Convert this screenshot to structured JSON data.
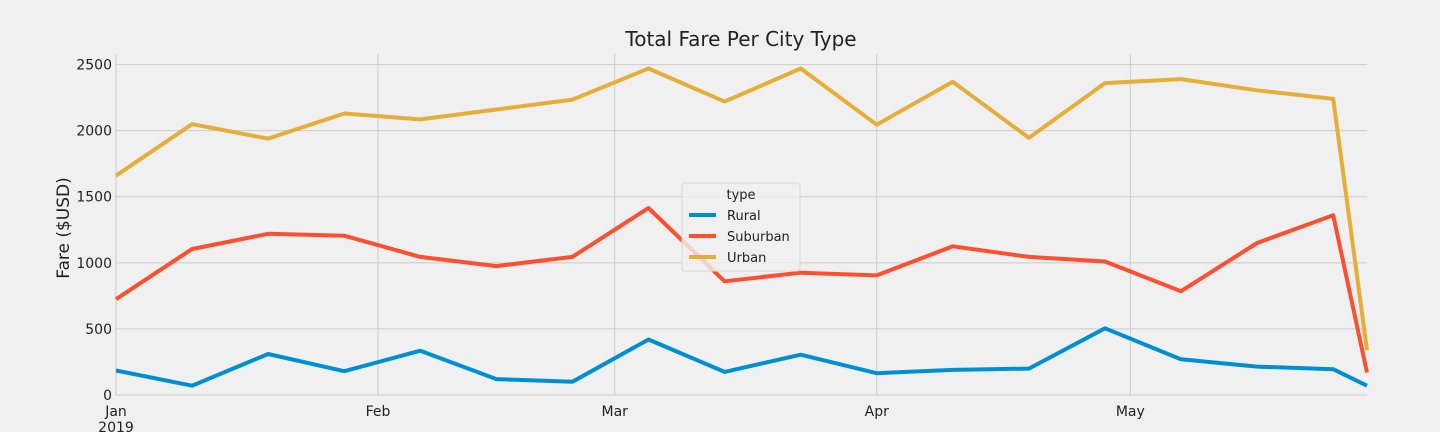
{
  "chart_data": {
    "type": "line",
    "title": "Total Fare Per City Type",
    "xlabel": "",
    "ylabel": "Fare ($USD)",
    "ylim": [
      0,
      2580
    ],
    "yticks": [
      0,
      500,
      1000,
      1500,
      2000,
      2500
    ],
    "xticks": [
      {
        "label": "Jan",
        "sub": "2019",
        "date": "2019-01-01"
      },
      {
        "label": "Feb",
        "sub": "",
        "date": "2019-02-01"
      },
      {
        "label": "Mar",
        "sub": "",
        "date": "2019-03-01"
      },
      {
        "label": "Apr",
        "sub": "",
        "date": "2019-04-01"
      },
      {
        "label": "May",
        "sub": "",
        "date": "2019-05-01"
      }
    ],
    "x": [
      "2019-01-01",
      "2019-01-10",
      "2019-01-19",
      "2019-01-28",
      "2019-02-06",
      "2019-02-15",
      "2019-02-24",
      "2019-03-05",
      "2019-03-14",
      "2019-03-23",
      "2019-04-01",
      "2019-04-10",
      "2019-04-19",
      "2019-04-28",
      "2019-05-07",
      "2019-05-16",
      "2019-05-25",
      "2019-05-29"
    ],
    "series": [
      {
        "name": "Rural",
        "color": "#008fd5",
        "values": [
          185,
          70,
          310,
          180,
          335,
          120,
          100,
          420,
          175,
          305,
          165,
          190,
          200,
          505,
          270,
          215,
          195,
          70
        ]
      },
      {
        "name": "Suburban",
        "color": "#fc4f30",
        "values": [
          725,
          1105,
          1220,
          1205,
          1045,
          975,
          1045,
          1415,
          860,
          925,
          905,
          1125,
          1045,
          1010,
          785,
          1150,
          1360,
          170
        ]
      },
      {
        "name": "Urban",
        "color": "#e5ae38",
        "values": [
          1660,
          2050,
          1940,
          2130,
          2085,
          2160,
          2235,
          2470,
          2220,
          2470,
          2045,
          2370,
          1945,
          2360,
          2390,
          2305,
          2240,
          340
        ]
      }
    ],
    "legend": {
      "title": "type",
      "position": "center"
    },
    "grid": true
  }
}
